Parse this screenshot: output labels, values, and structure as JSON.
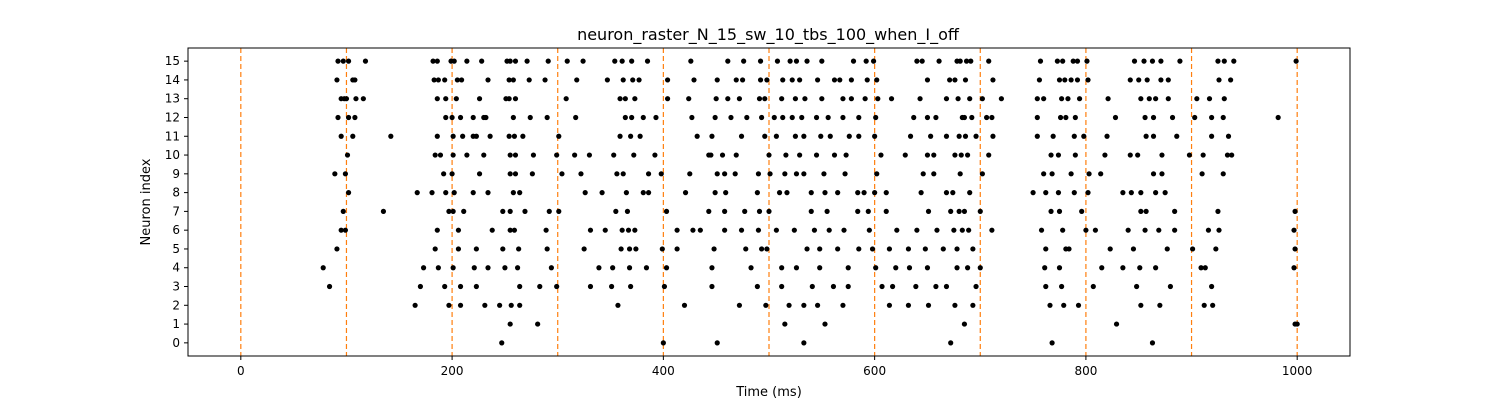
{
  "chart_data": {
    "type": "scatter",
    "title": "neuron_raster_N_15_sw_10_tbs_100_when_I_off",
    "xlabel": "Time (ms)",
    "ylabel": "Neuron index",
    "xlim": [
      -50,
      1050
    ],
    "ylim": [
      -0.7,
      15.7
    ],
    "xticks": [
      0,
      200,
      400,
      600,
      800,
      1000
    ],
    "xtick_labels": [
      "0",
      "200",
      "400",
      "600",
      "800",
      "1000"
    ],
    "yticks": [
      0,
      1,
      2,
      3,
      4,
      5,
      6,
      7,
      8,
      9,
      10,
      11,
      12,
      13,
      14,
      15
    ],
    "ytick_labels": [
      "0",
      "1",
      "2",
      "3",
      "4",
      "5",
      "6",
      "7",
      "8",
      "9",
      "10",
      "11",
      "12",
      "13",
      "14",
      "15"
    ],
    "grid": false,
    "legend": "none",
    "marker_color": "#000000",
    "vline_color": "#ff7f0e",
    "vlines": [
      0,
      100,
      200,
      300,
      400,
      500,
      600,
      700,
      800,
      900,
      1000
    ],
    "spikes": [
      {
        "neuron": 15,
        "times": [
          92,
          97,
          102,
          118,
          182,
          186,
          199,
          202,
          214,
          228,
          252,
          255,
          260,
          271,
          291,
          309,
          324,
          354,
          361,
          370,
          385,
          426,
          461,
          476,
          492,
          508,
          520,
          526,
          536,
          550,
          580,
          592,
          599,
          640,
          645,
          661,
          678,
          681,
          687,
          691,
          708,
          757,
          773,
          778,
          788,
          792,
          801,
          846,
          855,
          863,
          871,
          889,
          925,
          931,
          940,
          999
        ]
      },
      {
        "neuron": 14,
        "times": [
          91,
          106,
          108,
          183,
          187,
          193,
          205,
          209,
          234,
          254,
          258,
          273,
          288,
          318,
          347,
          362,
          371,
          377,
          404,
          429,
          451,
          469,
          475,
          492,
          498,
          513,
          522,
          529,
          546,
          562,
          567,
          578,
          593,
          602,
          650,
          671,
          676,
          686,
          712,
          756,
          775,
          780,
          786,
          792,
          802,
          842,
          850,
          858,
          871,
          878,
          926,
          937
        ]
      },
      {
        "neuron": 13,
        "times": [
          95,
          98,
          100,
          109,
          116,
          186,
          194,
          204,
          226,
          251,
          254,
          260,
          308,
          359,
          364,
          373,
          404,
          424,
          450,
          461,
          472,
          491,
          496,
          512,
          525,
          534,
          550,
          570,
          578,
          591,
          603,
          616,
          643,
          668,
          679,
          690,
          702,
          720,
          754,
          760,
          777,
          783,
          794,
          821,
          852,
          860,
          866,
          878,
          905,
          917,
          931
        ]
      },
      {
        "neuron": 12,
        "times": [
          92,
          102,
          108,
          194,
          200,
          208,
          220,
          230,
          232,
          258,
          274,
          290,
          317,
          364,
          370,
          381,
          393,
          427,
          449,
          464,
          479,
          493,
          505,
          513,
          522,
          531,
          545,
          556,
          570,
          585,
          601,
          637,
          650,
          658,
          683,
          685,
          692,
          706,
          711,
          754,
          776,
          781,
          790,
          828,
          856,
          864,
          882,
          903,
          919,
          930,
          982
        ]
      },
      {
        "neuron": 11,
        "times": [
          95,
          106,
          142,
          186,
          201,
          210,
          220,
          223,
          236,
          254,
          259,
          267,
          301,
          359,
          369,
          378,
          432,
          446,
          474,
          496,
          507,
          525,
          533,
          549,
          558,
          576,
          585,
          600,
          634,
          653,
          668,
          680,
          686,
          696,
          712,
          754,
          769,
          789,
          798,
          820,
          857,
          864,
          886,
          919,
          935
        ]
      },
      {
        "neuron": 10,
        "times": [
          101,
          184,
          189,
          201,
          214,
          230,
          255,
          260,
          277,
          299,
          316,
          330,
          353,
          372,
          392,
          443,
          445,
          456,
          469,
          500,
          516,
          529,
          545,
          562,
          573,
          606,
          629,
          650,
          656,
          676,
          682,
          688,
          708,
          767,
          774,
          790,
          818,
          842,
          849,
          872,
          898,
          911,
          934,
          938
        ]
      },
      {
        "neuron": 9,
        "times": [
          89,
          99,
          192,
          200,
          226,
          255,
          260,
          276,
          304,
          322,
          356,
          362,
          386,
          398,
          425,
          451,
          458,
          468,
          490,
          501,
          515,
          526,
          533,
          552,
          572,
          602,
          646,
          656,
          681,
          702,
          760,
          768,
          786,
          803,
          814,
          864,
          872,
          910,
          930
        ]
      },
      {
        "neuron": 8,
        "times": [
          102,
          167,
          181,
          194,
          202,
          220,
          234,
          258,
          264,
          326,
          342,
          365,
          381,
          386,
          421,
          449,
          459,
          489,
          510,
          517,
          540,
          553,
          565,
          584,
          590,
          600,
          611,
          644,
          668,
          674,
          690,
          750,
          762,
          774,
          789,
          802,
          835,
          843,
          852,
          866,
          875
        ]
      },
      {
        "neuron": 7,
        "times": [
          97,
          135,
          197,
          201,
          211,
          248,
          255,
          269,
          292,
          301,
          355,
          366,
          403,
          443,
          458,
          477,
          491,
          500,
          540,
          555,
          584,
          594,
          611,
          651,
          672,
          680,
          685,
          700,
          767,
          775,
          796,
          852,
          857,
          884,
          925,
          998
        ]
      },
      {
        "neuron": 6,
        "times": [
          95,
          99,
          186,
          206,
          238,
          255,
          259,
          289,
          331,
          345,
          361,
          367,
          373,
          413,
          428,
          435,
          458,
          474,
          490,
          507,
          524,
          543,
          557,
          571,
          595,
          621,
          640,
          659,
          675,
          683,
          689,
          711,
          758,
          778,
          800,
          809,
          840,
          856,
          869,
          884,
          916,
          926,
          997
        ]
      },
      {
        "neuron": 5,
        "times": [
          91,
          184,
          206,
          223,
          248,
          263,
          290,
          325,
          360,
          368,
          374,
          399,
          413,
          448,
          478,
          493,
          498,
          536,
          548,
          565,
          585,
          598,
          614,
          632,
          648,
          665,
          678,
          693,
          762,
          781,
          784,
          823,
          845,
          877,
          901,
          923,
          998
        ]
      },
      {
        "neuron": 4,
        "times": [
          78,
          173,
          187,
          201,
          221,
          234,
          250,
          262,
          294,
          339,
          352,
          368,
          384,
          403,
          446,
          483,
          512,
          526,
          548,
          575,
          601,
          620,
          633,
          650,
          678,
          688,
          700,
          761,
          775,
          815,
          835,
          851,
          866,
          909,
          913,
          997
        ]
      },
      {
        "neuron": 3,
        "times": [
          84,
          170,
          193,
          208,
          223,
          264,
          283,
          299,
          331,
          351,
          369,
          401,
          446,
          489,
          512,
          541,
          561,
          575,
          607,
          617,
          639,
          658,
          668,
          696,
          762,
          777,
          807,
          848,
          880,
          919
        ]
      },
      {
        "neuron": 2,
        "times": [
          165,
          197,
          208,
          231,
          245,
          256,
          264,
          357,
          420,
          472,
          497,
          519,
          533,
          546,
          570,
          614,
          632,
          651,
          676,
          693,
          766,
          779,
          793,
          852,
          870,
          912,
          920
        ]
      },
      {
        "neuron": 1,
        "times": [
          255,
          281,
          515,
          553,
          685,
          829,
          998,
          1000
        ]
      },
      {
        "neuron": 0,
        "times": [
          247,
          400,
          451,
          533,
          672,
          768,
          863
        ]
      }
    ]
  }
}
